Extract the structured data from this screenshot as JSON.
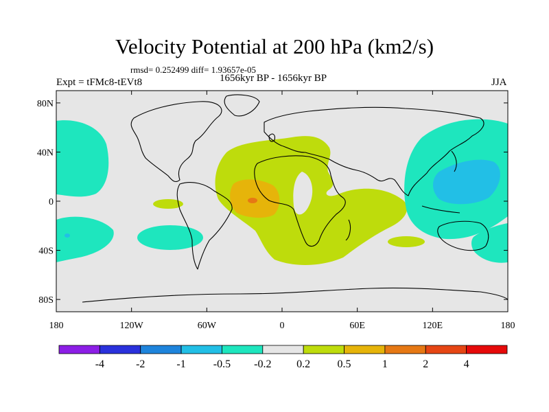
{
  "title": "Velocity Potential at 200 hPa (km2/s)",
  "stats": "rmsd= 0.252499 diff= 1.93657e-05",
  "period": "1656kyr BP - 1656kyr BP",
  "experiment": "Expt = tFMc8-tEVt8",
  "season": "JJA",
  "y_axis": {
    "ticks": [
      {
        "lat": 80,
        "label": "80N"
      },
      {
        "lat": 40,
        "label": "40N"
      },
      {
        "lat": 0,
        "label": "0"
      },
      {
        "lat": -40,
        "label": "40S"
      },
      {
        "lat": -80,
        "label": "80S"
      }
    ]
  },
  "x_axis": {
    "ticks": [
      {
        "lon": -180,
        "label": "180"
      },
      {
        "lon": -120,
        "label": "120W"
      },
      {
        "lon": -60,
        "label": "60W"
      },
      {
        "lon": 0,
        "label": "0"
      },
      {
        "lon": 60,
        "label": "60E"
      },
      {
        "lon": 120,
        "label": "120E"
      },
      {
        "lon": 180,
        "label": "180"
      }
    ]
  },
  "colorbar": {
    "colors": [
      "#8c1ee6",
      "#2a31dc",
      "#1e84dc",
      "#22bfe6",
      "#1ee6be",
      "#e6e6e6",
      "#bedc0c",
      "#e6b40a",
      "#e67814",
      "#e64614",
      "#e60a0a"
    ],
    "labels": [
      "-4",
      "-2",
      "-1",
      "-0.5",
      "-0.2",
      "0.2",
      "0.5",
      "1",
      "2",
      "4"
    ]
  },
  "map_colors": {
    "background": "#e6e6e6",
    "coast": "#000000"
  }
}
